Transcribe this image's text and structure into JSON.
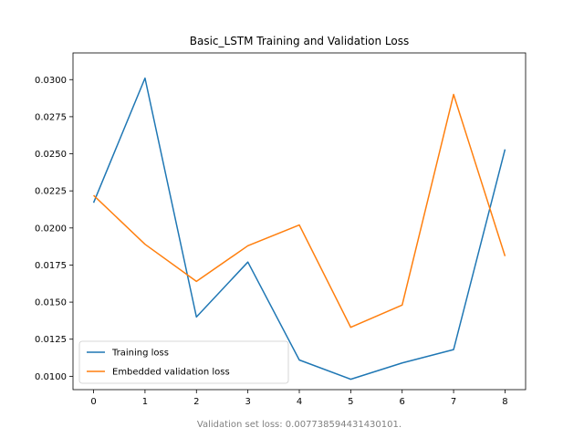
{
  "chart_data": {
    "type": "line",
    "title": "Basic_LSTM Training and Validation Loss",
    "xlabel": "",
    "ylabel": "",
    "x": [
      0,
      1,
      2,
      3,
      4,
      5,
      6,
      7,
      8
    ],
    "xlim": [
      -0.4,
      8.4
    ],
    "ylim": [
      0.0091,
      0.0318
    ],
    "x_ticks": [
      "0",
      "1",
      "2",
      "3",
      "4",
      "5",
      "6",
      "7",
      "8"
    ],
    "y_ticks": [
      "0.0100",
      "0.0125",
      "0.0150",
      "0.0175",
      "0.0200",
      "0.0225",
      "0.0250",
      "0.0275",
      "0.0300"
    ],
    "y_tick_values": [
      0.01,
      0.0125,
      0.015,
      0.0175,
      0.02,
      0.0225,
      0.025,
      0.0275,
      0.03
    ],
    "grid": false,
    "legend_position": "lower-left",
    "series": [
      {
        "name": "Training loss",
        "color": "#1f77b4",
        "values": [
          0.0217,
          0.0301,
          0.014,
          0.0177,
          0.0111,
          0.0098,
          0.0109,
          0.0118,
          0.0253
        ]
      },
      {
        "name": "Embedded validation loss",
        "color": "#ff7f0e",
        "values": [
          0.0222,
          0.0189,
          0.0164,
          0.0188,
          0.0202,
          0.0133,
          0.0148,
          0.029,
          0.0181
        ]
      }
    ],
    "footnote": "Validation set loss: 0.007738594431430101."
  }
}
